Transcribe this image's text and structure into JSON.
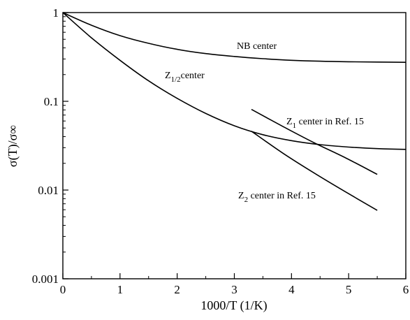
{
  "chart_data": {
    "type": "line",
    "xlabel": "1000/T (1/K)",
    "ylabel": "σ(T)/σ∞",
    "xlim": [
      0,
      6
    ],
    "ylim": [
      0.001,
      1
    ],
    "yscale": "log",
    "x_ticks": [
      0,
      1,
      2,
      3,
      4,
      5,
      6
    ],
    "x_tick_labels": [
      "0",
      "1",
      "2",
      "3",
      "4",
      "5",
      "6"
    ],
    "y_ticks": [
      0.001,
      0.01,
      0.1,
      1
    ],
    "y_tick_labels": [
      "0.001",
      "0.01",
      "0.1",
      "1"
    ],
    "grid": false,
    "legend": "none",
    "series": [
      {
        "label_main": "NB center",
        "label_sub": "",
        "label_rest": "",
        "x": [
          0,
          0.5,
          1,
          1.5,
          2,
          2.5,
          3,
          3.5,
          4,
          4.5,
          5,
          5.5,
          6
        ],
        "y": [
          1,
          0.72,
          0.55,
          0.45,
          0.385,
          0.345,
          0.32,
          0.302,
          0.29,
          0.283,
          0.279,
          0.277,
          0.275
        ]
      },
      {
        "label_main": "Z",
        "label_sub": "1/2",
        "label_rest": "center",
        "x": [
          0,
          0.5,
          1,
          1.5,
          2,
          2.5,
          3,
          3.5,
          4,
          4.5,
          5,
          5.5,
          6
        ],
        "y": [
          1,
          0.52,
          0.29,
          0.17,
          0.108,
          0.073,
          0.053,
          0.042,
          0.036,
          0.0325,
          0.0305,
          0.0293,
          0.0287
        ]
      },
      {
        "label_main": "Z",
        "label_sub": "1",
        "label_rest": " center in Ref. 15",
        "x": [
          3.3,
          3.85,
          4.4,
          4.95,
          5.5
        ],
        "y": [
          0.081,
          0.052,
          0.034,
          0.023,
          0.015
        ]
      },
      {
        "label_main": "Z",
        "label_sub": "2",
        "label_rest": " center in Ref. 15",
        "x": [
          3.3,
          3.85,
          4.4,
          4.95,
          5.5
        ],
        "y": [
          0.046,
          0.026,
          0.0155,
          0.0095,
          0.0059
        ]
      }
    ]
  }
}
